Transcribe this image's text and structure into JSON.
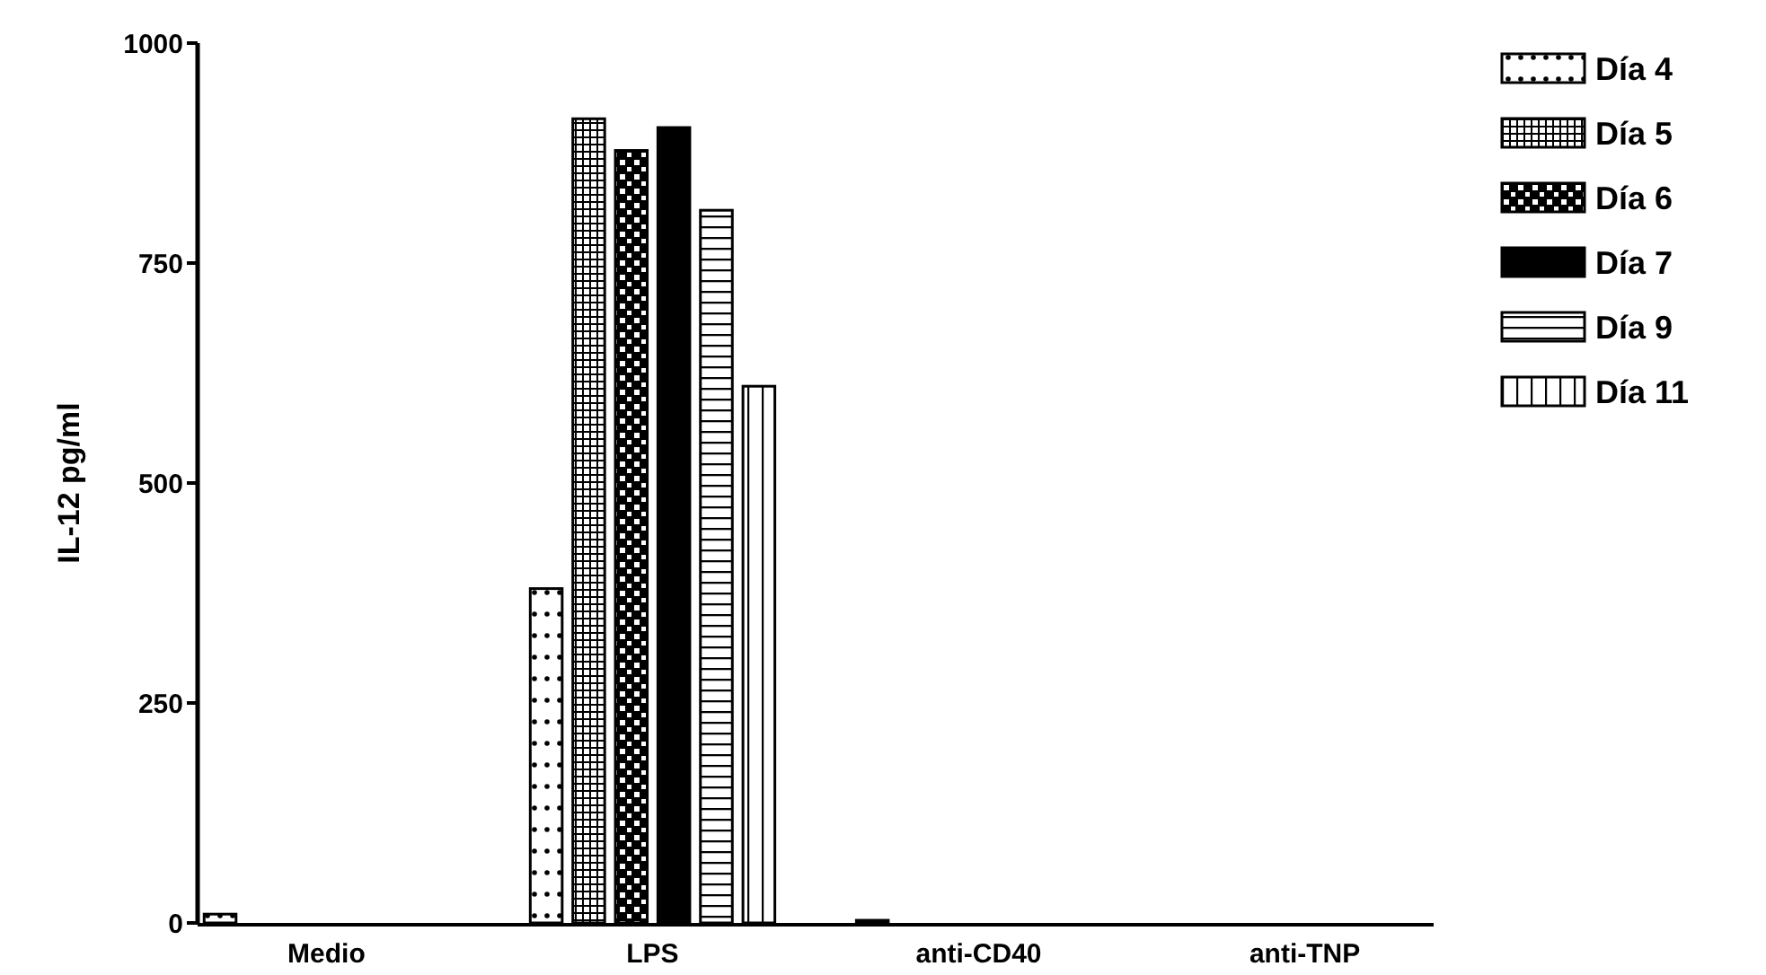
{
  "chart_data": {
    "type": "bar",
    "ylabel": "IL-12 pg/ml",
    "categories": [
      "Medio",
      "LPS",
      "anti-CD40",
      "anti-TNP"
    ],
    "ylim": [
      0,
      1000
    ],
    "yticks": [
      0,
      250,
      500,
      750,
      1000
    ],
    "grid": false,
    "legend": "top right",
    "series": [
      {
        "name": "Día 4",
        "color": "#000000",
        "values": [
          10,
          380,
          3,
          0
        ]
      },
      {
        "name": "Día 5",
        "color": "#000000",
        "values": [
          0,
          914,
          0,
          0
        ]
      },
      {
        "name": "Día 6",
        "color": "#000000",
        "values": [
          0,
          878,
          0,
          0
        ]
      },
      {
        "name": "Día 7",
        "color": "#000000",
        "values": [
          0,
          904,
          0,
          0
        ]
      },
      {
        "name": "Día 9",
        "color": "#000000",
        "values": [
          0,
          810,
          0,
          0
        ]
      },
      {
        "name": "Día 11",
        "color": "#000000",
        "values": [
          0,
          610,
          0,
          0
        ]
      }
    ]
  }
}
